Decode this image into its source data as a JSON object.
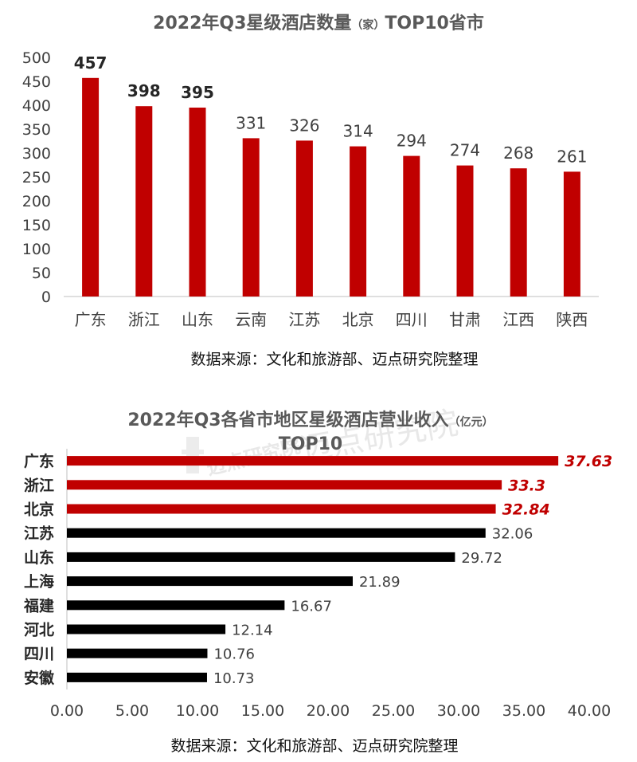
{
  "chart_data": [
    {
      "type": "bar",
      "title_main": "2022年Q3星级酒店数量",
      "title_unit": "（家）",
      "title_tail": "TOP10省市",
      "categories": [
        "广东",
        "浙江",
        "山东",
        "云南",
        "江苏",
        "北京",
        "四川",
        "甘肃",
        "江西",
        "陕西"
      ],
      "values": [
        457,
        398,
        395,
        331,
        326,
        314,
        294,
        274,
        268,
        261
      ],
      "value_labels": [
        "457",
        "398",
        "395",
        "331",
        "326",
        "314",
        "294",
        "274",
        "268",
        "261"
      ],
      "bold_labels": [
        true,
        true,
        true,
        false,
        false,
        false,
        false,
        false,
        false,
        false
      ],
      "ylim": [
        0,
        500
      ],
      "yticks": [
        0,
        50,
        100,
        150,
        200,
        250,
        300,
        350,
        400,
        450,
        500
      ],
      "ytick_labels": [
        "0",
        "50",
        "100",
        "150",
        "200",
        "250",
        "300",
        "350",
        "400",
        "450",
        "500"
      ],
      "bar_color": "#c00000",
      "grid": false,
      "source": "数据来源：文化和旅游部、迈点研究院整理"
    },
    {
      "type": "bar",
      "orientation": "horizontal",
      "title_main": "2022年Q3各省市地区星级酒店营业收入",
      "title_unit": "（亿元）",
      "title_line2": "TOP10",
      "categories": [
        "广东",
        "浙江",
        "北京",
        "江苏",
        "山东",
        "上海",
        "福建",
        "河北",
        "四川",
        "安徽"
      ],
      "values": [
        37.63,
        33.3,
        32.84,
        32.06,
        29.72,
        21.89,
        16.67,
        12.14,
        10.76,
        10.73
      ],
      "value_labels": [
        "37.63",
        "33.3",
        "32.84",
        "32.06",
        "29.72",
        "21.89",
        "16.67",
        "12.14",
        "10.76",
        "10.73"
      ],
      "highlight": [
        true,
        true,
        true,
        false,
        false,
        false,
        false,
        false,
        false,
        false
      ],
      "xlim": [
        0,
        40
      ],
      "xticks": [
        0,
        5,
        10,
        15,
        20,
        25,
        30,
        35,
        40
      ],
      "xtick_labels": [
        "0.00",
        "5.00",
        "10.00",
        "15.00",
        "20.00",
        "25.00",
        "30.00",
        "35.00",
        "40.00"
      ],
      "highlight_color": "#c00000",
      "bar_color": "#000000",
      "grid": false,
      "watermark": "迈点研究院",
      "source": "数据来源：文化和旅游部、迈点研究院整理"
    }
  ]
}
